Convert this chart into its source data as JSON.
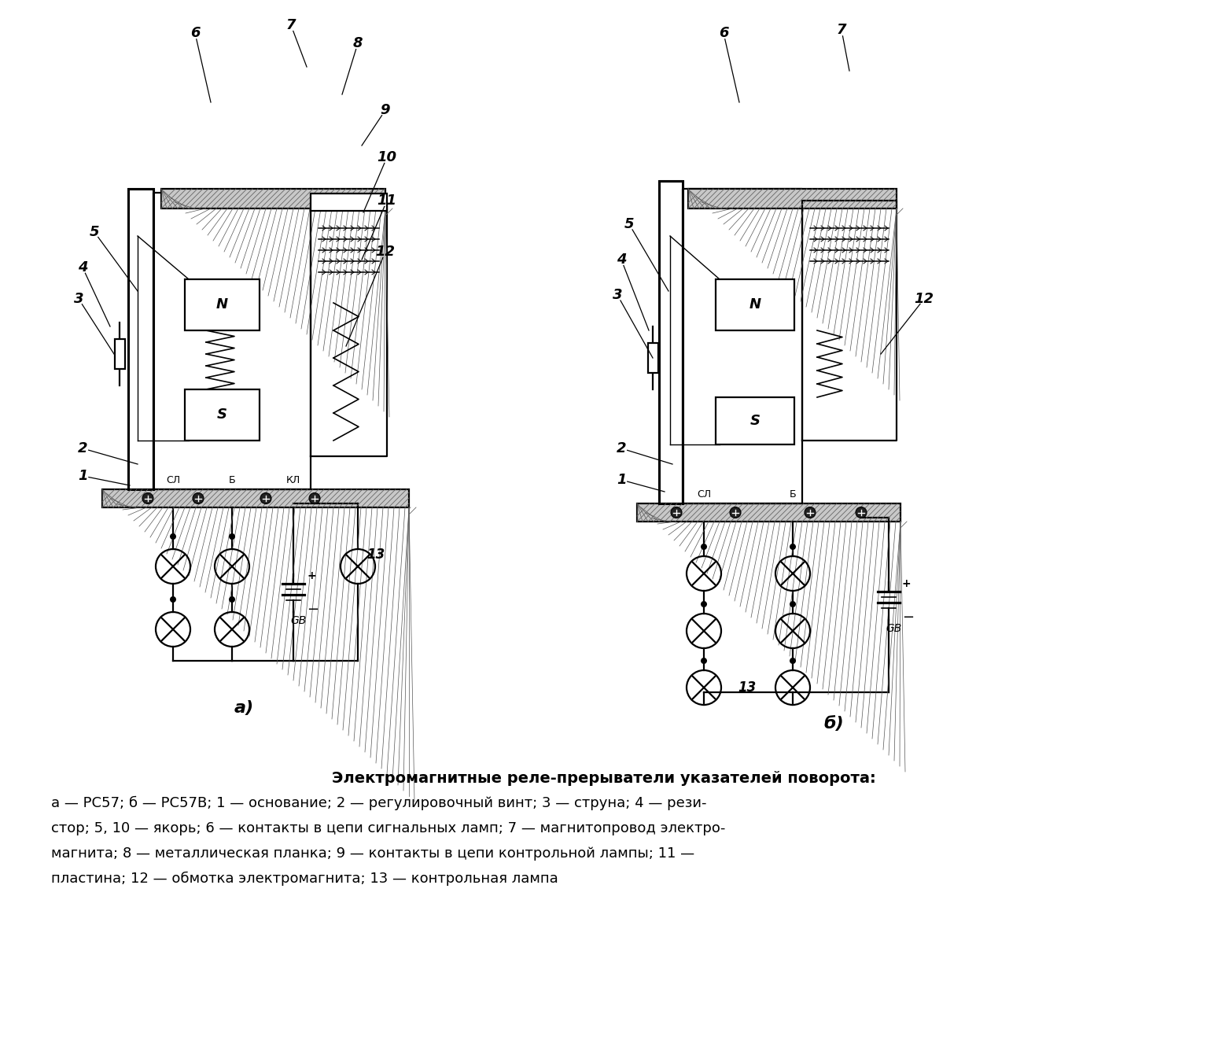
{
  "bg": "#ffffff",
  "title": "Электромагнитные реле-прерыватели указателей поворота:",
  "cap1": "а — РС57; б — РС57В; 1 — основание; 2 — регулировочный винт; 3 — струна; 4 — рези-",
  "cap2": "стор; 5, 10 — якорь; 6 — контакты в цепи сигнальных ламп; 7 — магнитопровод электро-",
  "cap3": "магнита; 8 — металлическая планка; 9 — контакты в цепи контрольной лампы; 11 —",
  "cap4": "пластина; 12 — обмотка электромагнита; 13 — контрольная лампа",
  "la": "а)",
  "lb": "б)"
}
